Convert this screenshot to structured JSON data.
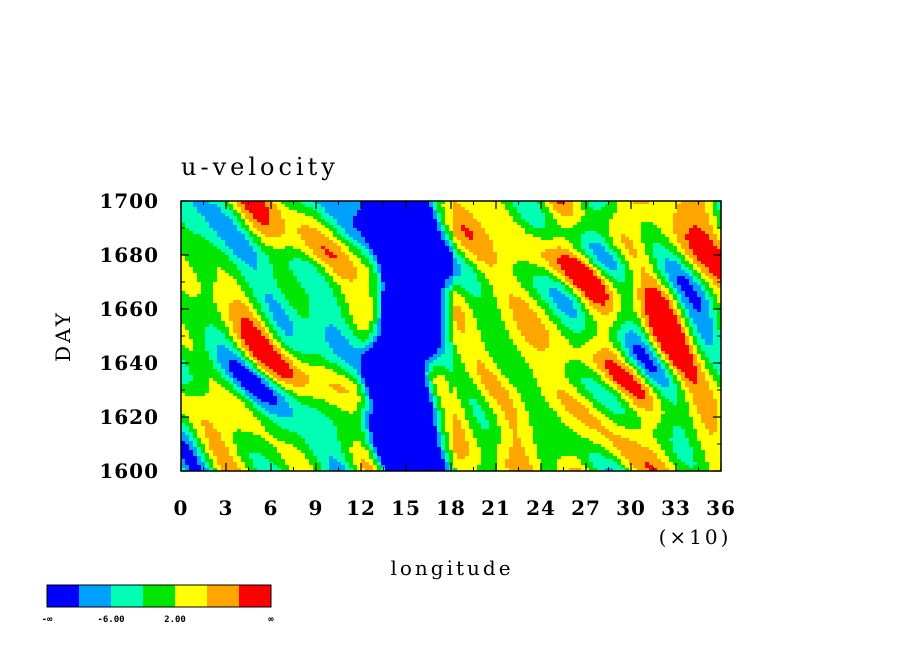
{
  "chart_data": {
    "type": "heatmap",
    "title": "u-velocity",
    "xlabel": "longitude",
    "ylabel": "DAY",
    "x_multiplier": "(×10)",
    "xlim": [
      0,
      36
    ],
    "ylim": [
      1600,
      1700
    ],
    "x_ticks": [
      "0",
      "3",
      "6",
      "9",
      "12",
      "15",
      "18",
      "21",
      "24",
      "27",
      "30",
      "33",
      "36"
    ],
    "y_ticks": [
      "1600",
      "1620",
      "1640",
      "1660",
      "1680",
      "1700"
    ],
    "colorbar": {
      "colors": [
        "#0000ff",
        "#00a0ff",
        "#00ffb4",
        "#00e600",
        "#ffff00",
        "#ffa500",
        "#ff0000"
      ],
      "labels": [
        "-∞",
        "-6.00",
        "2.00",
        "∞"
      ]
    },
    "field_description": {
      "low_band_x_range": [
        12,
        18
      ],
      "low_band_color": "#0000ff"
    }
  }
}
